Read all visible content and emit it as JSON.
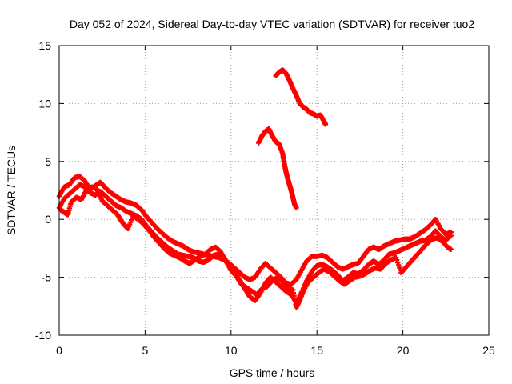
{
  "chart_data": {
    "type": "scatter",
    "title": "Day 052 of 2024, Sidereal Day-to-day VTEC variation (SDTVAR) for receiver tuo2",
    "xlabel": "GPS time / hours",
    "ylabel": "SDTVAR / TECUs",
    "xlim": [
      0,
      25
    ],
    "ylim": [
      -10,
      15
    ],
    "xticks": [
      0,
      5,
      10,
      15,
      20,
      25
    ],
    "yticks": [
      -10,
      -5,
      0,
      5,
      10,
      15
    ],
    "x_tick_labels": [
      "0",
      "5",
      "10",
      "15",
      "20",
      "25"
    ],
    "y_tick_labels": [
      "-10",
      "-5",
      "0",
      "5",
      "10",
      "15"
    ],
    "grid": true,
    "legend": "none",
    "marker": "plus",
    "color": "#ff0000",
    "series": [
      {
        "name": "track-1",
        "points": [
          [
            0.0,
            2.0
          ],
          [
            0.3,
            2.8
          ],
          [
            0.6,
            3.0
          ],
          [
            0.9,
            3.6
          ],
          [
            1.2,
            3.7
          ],
          [
            1.5,
            3.3
          ],
          [
            1.8,
            2.6
          ],
          [
            2.1,
            2.9
          ],
          [
            2.4,
            3.2
          ],
          [
            2.7,
            2.7
          ],
          [
            3.0,
            2.3
          ],
          [
            3.3,
            2.0
          ],
          [
            3.6,
            1.7
          ],
          [
            3.9,
            1.5
          ],
          [
            4.2,
            1.4
          ],
          [
            4.5,
            1.2
          ],
          [
            4.8,
            0.8
          ],
          [
            5.1,
            0.2
          ],
          [
            5.4,
            -0.3
          ],
          [
            5.7,
            -0.8
          ],
          [
            6.0,
            -1.2
          ],
          [
            6.3,
            -1.6
          ],
          [
            6.6,
            -1.9
          ],
          [
            6.9,
            -2.1
          ],
          [
            7.2,
            -2.3
          ],
          [
            7.5,
            -2.6
          ],
          [
            7.8,
            -2.8
          ],
          [
            8.1,
            -2.9
          ],
          [
            8.4,
            -3.0
          ],
          [
            8.7,
            -3.1
          ],
          [
            9.0,
            -3.2
          ],
          [
            9.3,
            -3.3
          ],
          [
            9.6,
            -3.5
          ],
          [
            9.9,
            -3.8
          ],
          [
            10.2,
            -4.2
          ],
          [
            10.5,
            -4.6
          ],
          [
            10.8,
            -5.0
          ],
          [
            11.1,
            -5.2
          ],
          [
            11.4,
            -5.0
          ],
          [
            11.7,
            -4.3
          ],
          [
            12.0,
            -3.8
          ],
          [
            12.3,
            -4.2
          ],
          [
            12.6,
            -4.6
          ],
          [
            12.9,
            -5.0
          ],
          [
            13.2,
            -5.5
          ],
          [
            13.5,
            -5.6
          ],
          [
            13.8,
            -5.2
          ],
          [
            14.1,
            -4.4
          ],
          [
            14.4,
            -3.6
          ],
          [
            14.7,
            -3.2
          ],
          [
            15.0,
            -3.2
          ],
          [
            15.3,
            -3.1
          ],
          [
            15.6,
            -3.3
          ],
          [
            15.9,
            -3.7
          ],
          [
            16.2,
            -4.1
          ],
          [
            16.5,
            -4.3
          ],
          [
            16.8,
            -4.1
          ],
          [
            17.1,
            -3.9
          ],
          [
            17.4,
            -3.8
          ],
          [
            17.7,
            -3.2
          ],
          [
            18.0,
            -2.6
          ],
          [
            18.3,
            -2.4
          ],
          [
            18.6,
            -2.6
          ],
          [
            18.9,
            -2.3
          ],
          [
            19.2,
            -2.1
          ],
          [
            19.5,
            -1.9
          ],
          [
            19.8,
            -1.8
          ],
          [
            20.1,
            -1.7
          ],
          [
            20.4,
            -1.7
          ],
          [
            20.7,
            -1.5
          ],
          [
            21.0,
            -1.2
          ],
          [
            21.3,
            -0.9
          ],
          [
            21.6,
            -0.5
          ],
          [
            21.9,
            0.0
          ],
          [
            22.2,
            -0.8
          ],
          [
            22.5,
            -1.3
          ],
          [
            22.8,
            -1.1
          ]
        ]
      },
      {
        "name": "track-2",
        "points": [
          [
            0.0,
            1.0
          ],
          [
            0.3,
            1.8
          ],
          [
            0.6,
            2.2
          ],
          [
            0.9,
            2.6
          ],
          [
            1.2,
            3.0
          ],
          [
            1.5,
            2.8
          ],
          [
            1.8,
            2.3
          ],
          [
            2.1,
            2.1
          ],
          [
            2.4,
            2.4
          ],
          [
            2.7,
            2.0
          ],
          [
            3.0,
            1.6
          ],
          [
            3.3,
            1.2
          ],
          [
            3.6,
            1.0
          ],
          [
            3.9,
            0.7
          ],
          [
            4.2,
            0.5
          ],
          [
            4.5,
            0.3
          ],
          [
            4.8,
            0.0
          ],
          [
            5.1,
            -0.6
          ],
          [
            5.4,
            -1.1
          ],
          [
            5.7,
            -1.6
          ],
          [
            6.0,
            -2.0
          ],
          [
            6.3,
            -2.4
          ],
          [
            6.6,
            -2.7
          ],
          [
            6.9,
            -3.0
          ],
          [
            7.2,
            -3.1
          ],
          [
            7.5,
            -3.2
          ],
          [
            7.8,
            -3.3
          ],
          [
            8.1,
            -3.6
          ],
          [
            8.4,
            -3.7
          ],
          [
            8.7,
            -3.5
          ],
          [
            9.0,
            -3.1
          ],
          [
            9.3,
            -3.0
          ],
          [
            9.6,
            -3.3
          ],
          [
            9.9,
            -4.0
          ],
          [
            10.2,
            -4.6
          ],
          [
            10.5,
            -5.2
          ],
          [
            10.8,
            -6.0
          ],
          [
            11.1,
            -6.7
          ],
          [
            11.4,
            -7.0
          ],
          [
            11.7,
            -6.4
          ],
          [
            12.0,
            -5.5
          ],
          [
            12.3,
            -5.0
          ],
          [
            12.6,
            -5.4
          ],
          [
            12.9,
            -5.8
          ],
          [
            13.2,
            -6.2
          ],
          [
            13.5,
            -6.5
          ],
          [
            13.8,
            -7.2
          ],
          [
            14.1,
            -6.3
          ],
          [
            14.4,
            -5.3
          ],
          [
            14.7,
            -4.5
          ],
          [
            15.0,
            -4.0
          ],
          [
            15.3,
            -3.9
          ],
          [
            15.6,
            -4.1
          ],
          [
            15.9,
            -4.4
          ],
          [
            16.2,
            -4.8
          ],
          [
            16.5,
            -5.3
          ],
          [
            16.8,
            -5.0
          ],
          [
            17.1,
            -4.6
          ],
          [
            17.4,
            -4.7
          ],
          [
            17.7,
            -4.4
          ],
          [
            18.0,
            -3.9
          ],
          [
            18.3,
            -3.6
          ],
          [
            18.6,
            -3.9
          ],
          [
            18.9,
            -3.5
          ],
          [
            19.2,
            -3.0
          ],
          [
            19.5,
            -2.9
          ],
          [
            19.8,
            -2.7
          ],
          [
            20.1,
            -2.5
          ],
          [
            20.4,
            -2.3
          ],
          [
            20.7,
            -2.1
          ],
          [
            21.0,
            -1.9
          ],
          [
            21.3,
            -1.8
          ],
          [
            21.6,
            -1.5
          ],
          [
            21.9,
            -1.0
          ],
          [
            22.2,
            -1.5
          ],
          [
            22.5,
            -1.8
          ],
          [
            22.8,
            -1.4
          ]
        ]
      },
      {
        "name": "track-3",
        "points": [
          [
            0.1,
            0.8
          ],
          [
            0.3,
            0.6
          ],
          [
            0.5,
            0.4
          ],
          [
            0.7,
            1.5
          ],
          [
            1.0,
            1.9
          ],
          [
            1.3,
            1.7
          ],
          [
            1.6,
            2.6
          ],
          [
            1.9,
            2.8
          ],
          [
            2.2,
            2.6
          ],
          [
            2.5,
            1.6
          ],
          [
            2.8,
            1.2
          ],
          [
            3.1,
            0.8
          ],
          [
            3.4,
            0.4
          ],
          [
            3.6,
            -0.1
          ],
          [
            3.8,
            -0.5
          ],
          [
            4.0,
            -0.8
          ],
          [
            4.3,
            0.3
          ],
          [
            4.6,
            0.0
          ],
          [
            4.9,
            -0.4
          ],
          [
            5.2,
            -0.9
          ],
          [
            5.5,
            -1.5
          ],
          [
            5.8,
            -2.0
          ],
          [
            6.1,
            -2.5
          ],
          [
            6.4,
            -2.9
          ],
          [
            6.7,
            -3.1
          ],
          [
            7.0,
            -3.3
          ],
          [
            7.3,
            -3.6
          ],
          [
            7.6,
            -3.8
          ],
          [
            7.9,
            -3.5
          ],
          [
            8.2,
            -3.2
          ],
          [
            8.5,
            -3.0
          ],
          [
            8.8,
            -2.6
          ],
          [
            9.1,
            -2.4
          ],
          [
            9.4,
            -2.8
          ],
          [
            9.7,
            -3.6
          ],
          [
            10.0,
            -4.4
          ],
          [
            10.3,
            -4.9
          ],
          [
            10.6,
            -5.6
          ],
          [
            10.9,
            -5.9
          ],
          [
            11.2,
            -6.2
          ],
          [
            11.5,
            -6.5
          ],
          [
            11.8,
            -6.0
          ],
          [
            12.1,
            -5.8
          ],
          [
            12.4,
            -5.3
          ],
          [
            12.7,
            -5.0
          ],
          [
            13.0,
            -5.4
          ],
          [
            13.3,
            -5.9
          ],
          [
            13.6,
            -6.1
          ],
          [
            13.8,
            -7.6
          ],
          [
            14.0,
            -7.0
          ],
          [
            14.2,
            -6.2
          ],
          [
            14.5,
            -5.4
          ],
          [
            14.8,
            -5.0
          ],
          [
            15.1,
            -4.6
          ],
          [
            15.4,
            -4.3
          ],
          [
            15.7,
            -4.5
          ],
          [
            16.0,
            -4.9
          ],
          [
            16.3,
            -5.3
          ],
          [
            16.6,
            -5.6
          ],
          [
            16.9,
            -5.3
          ],
          [
            17.2,
            -5.0
          ],
          [
            17.5,
            -4.9
          ],
          [
            17.8,
            -4.7
          ],
          [
            18.1,
            -4.4
          ],
          [
            18.4,
            -4.2
          ],
          [
            18.7,
            -4.3
          ],
          [
            19.0,
            -3.8
          ],
          [
            19.3,
            -3.5
          ],
          [
            19.6,
            -3.3
          ],
          [
            19.9,
            -4.6
          ],
          [
            20.2,
            -4.1
          ],
          [
            20.5,
            -3.6
          ],
          [
            20.8,
            -3.1
          ],
          [
            21.1,
            -2.6
          ],
          [
            21.4,
            -2.1
          ],
          [
            21.7,
            -1.7
          ],
          [
            22.0,
            -1.6
          ],
          [
            22.3,
            -1.9
          ],
          [
            22.6,
            -2.4
          ],
          [
            22.8,
            -2.6
          ]
        ]
      },
      {
        "name": "track-4",
        "points": [
          [
            11.6,
            6.6
          ],
          [
            11.8,
            7.2
          ],
          [
            12.0,
            7.6
          ],
          [
            12.2,
            7.8
          ],
          [
            12.4,
            7.2
          ],
          [
            12.6,
            6.7
          ],
          [
            12.8,
            6.5
          ],
          [
            13.0,
            5.7
          ],
          [
            13.1,
            4.8
          ],
          [
            13.2,
            4.1
          ],
          [
            13.3,
            3.5
          ],
          [
            13.4,
            3.0
          ],
          [
            13.5,
            2.5
          ],
          [
            13.6,
            1.9
          ],
          [
            13.7,
            1.3
          ],
          [
            13.8,
            1.0
          ]
        ]
      },
      {
        "name": "track-5",
        "points": [
          [
            12.6,
            12.4
          ],
          [
            12.8,
            12.7
          ],
          [
            13.0,
            12.9
          ],
          [
            13.2,
            12.6
          ],
          [
            13.4,
            12.0
          ],
          [
            13.6,
            11.3
          ],
          [
            13.8,
            10.7
          ],
          [
            14.0,
            10.0
          ],
          [
            14.2,
            9.7
          ],
          [
            14.4,
            9.5
          ],
          [
            14.6,
            9.2
          ],
          [
            14.8,
            9.1
          ],
          [
            15.0,
            8.9
          ],
          [
            15.2,
            9.0
          ],
          [
            15.4,
            8.5
          ],
          [
            15.5,
            8.2
          ]
        ]
      }
    ]
  }
}
